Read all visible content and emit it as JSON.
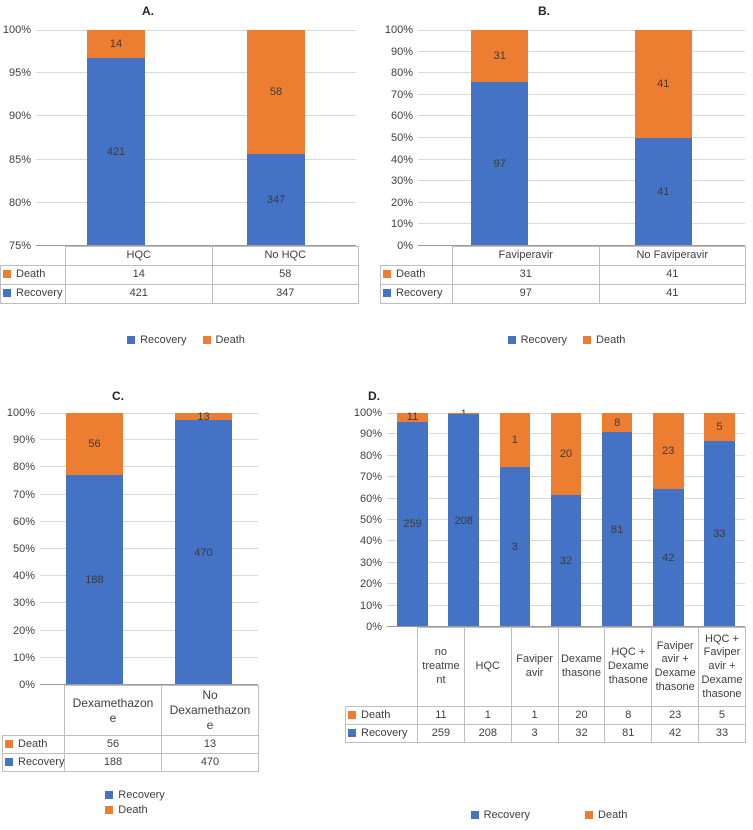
{
  "colors": {
    "recovery": "#4472C4",
    "death": "#ED7D31",
    "gridline": "#D9D9D9",
    "axis": "#9A9A9A",
    "table_border": "#BFBFBF",
    "text": "#404040"
  },
  "chart_data": [
    {
      "panel_label": "A.",
      "type": "bar",
      "subtype": "100%-stacked-column",
      "categories": [
        "HQC",
        "No HQC"
      ],
      "series": [
        {
          "name": "Recovery",
          "values": [
            421,
            347
          ]
        },
        {
          "name": "Death",
          "values": [
            14,
            58
          ]
        }
      ],
      "table_row_order": [
        "Death",
        "Recovery"
      ],
      "legend_order": [
        "Recovery",
        "Death"
      ],
      "ylim": [
        75,
        100
      ],
      "ytick_step": 5,
      "ytick_suffix": "%",
      "grid": true,
      "legend_position": "bottom",
      "legend_layout": "row"
    },
    {
      "panel_label": "B.",
      "type": "bar",
      "subtype": "100%-stacked-column",
      "categories": [
        "Faviperavir",
        "No Faviperavir"
      ],
      "series": [
        {
          "name": "Recovery",
          "values": [
            97,
            41
          ]
        },
        {
          "name": "Death",
          "values": [
            31,
            41
          ]
        }
      ],
      "table_row_order": [
        "Death",
        "Recovery"
      ],
      "legend_order": [
        "Recovery",
        "Death"
      ],
      "ylim": [
        0,
        100
      ],
      "ytick_step": 10,
      "ytick_suffix": "%",
      "grid": true,
      "legend_position": "bottom",
      "legend_layout": "row"
    },
    {
      "panel_label": "C.",
      "type": "bar",
      "subtype": "100%-stacked-column",
      "categories": [
        "Dexamethazone",
        "No Dexamethazone"
      ],
      "series": [
        {
          "name": "Recovery",
          "values": [
            188,
            470
          ]
        },
        {
          "name": "Death",
          "values": [
            56,
            13
          ]
        }
      ],
      "table_row_order": [
        "Death",
        "Recovery"
      ],
      "legend_order": [
        "Recovery",
        "Death"
      ],
      "ylim": [
        0,
        100
      ],
      "ytick_step": 10,
      "ytick_suffix": "%",
      "grid": true,
      "legend_position": "bottom",
      "legend_layout": "column"
    },
    {
      "panel_label": "D.",
      "type": "bar",
      "subtype": "100%-stacked-column",
      "categories": [
        "no treatment",
        "HQC",
        "Faviperavir",
        "Dexamethasone",
        "HQC + Dexamethasone",
        "Faviperavir + Dexamethasone",
        "HQC + Faviperavir + Dexamethasone"
      ],
      "series": [
        {
          "name": "Recovery",
          "values": [
            259,
            208,
            3,
            32,
            81,
            42,
            33
          ]
        },
        {
          "name": "Death",
          "values": [
            11,
            1,
            1,
            20,
            8,
            23,
            5
          ]
        }
      ],
      "table_row_order": [
        "Death",
        "Recovery"
      ],
      "legend_order": [
        "Recovery",
        "Death"
      ],
      "ylim": [
        0,
        100
      ],
      "ytick_step": 10,
      "ytick_suffix": "%",
      "grid": true,
      "legend_position": "bottom",
      "legend_layout": "row"
    }
  ]
}
